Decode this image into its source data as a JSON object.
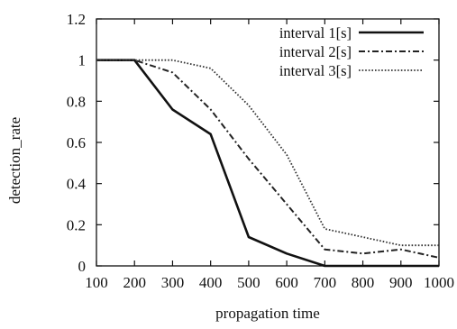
{
  "chart_data": {
    "type": "line",
    "xlabel": "propagation  time",
    "ylabel": "detection_rate",
    "xlim": [
      100,
      1000
    ],
    "ylim": [
      0,
      1.2
    ],
    "xticks": [
      100,
      200,
      300,
      400,
      500,
      600,
      700,
      800,
      900,
      1000
    ],
    "xtick_labels": [
      "100",
      "200",
      "300",
      "400",
      "500",
      "600",
      "700",
      "800",
      "900",
      "1000"
    ],
    "yticks": [
      0,
      0.2,
      0.4,
      0.6,
      0.8,
      1,
      1.2
    ],
    "ytick_labels": [
      "0",
      "0.2",
      "0.4",
      "0.6",
      "0.8",
      "1",
      "1.2"
    ],
    "grid": false,
    "legend_position": "top-right",
    "x": [
      100,
      200,
      300,
      400,
      500,
      600,
      700,
      800,
      900,
      1000
    ],
    "series": [
      {
        "name": "interval 1[s]",
        "style": "solid",
        "color": "#111111",
        "values": [
          1,
          1,
          0.76,
          0.64,
          0.14,
          0.06,
          0,
          0,
          0,
          0
        ]
      },
      {
        "name": "interval 2[s]",
        "style": "dash-dot",
        "color": "#222222",
        "values": [
          1,
          1,
          0.94,
          0.76,
          0.52,
          0.3,
          0.08,
          0.06,
          0.08,
          0.04
        ]
      },
      {
        "name": "interval 3[s]",
        "style": "dotted",
        "color": "#333333",
        "values": [
          1,
          1,
          1,
          0.96,
          0.78,
          0.54,
          0.18,
          0.14,
          0.1,
          0.1
        ]
      }
    ]
  }
}
